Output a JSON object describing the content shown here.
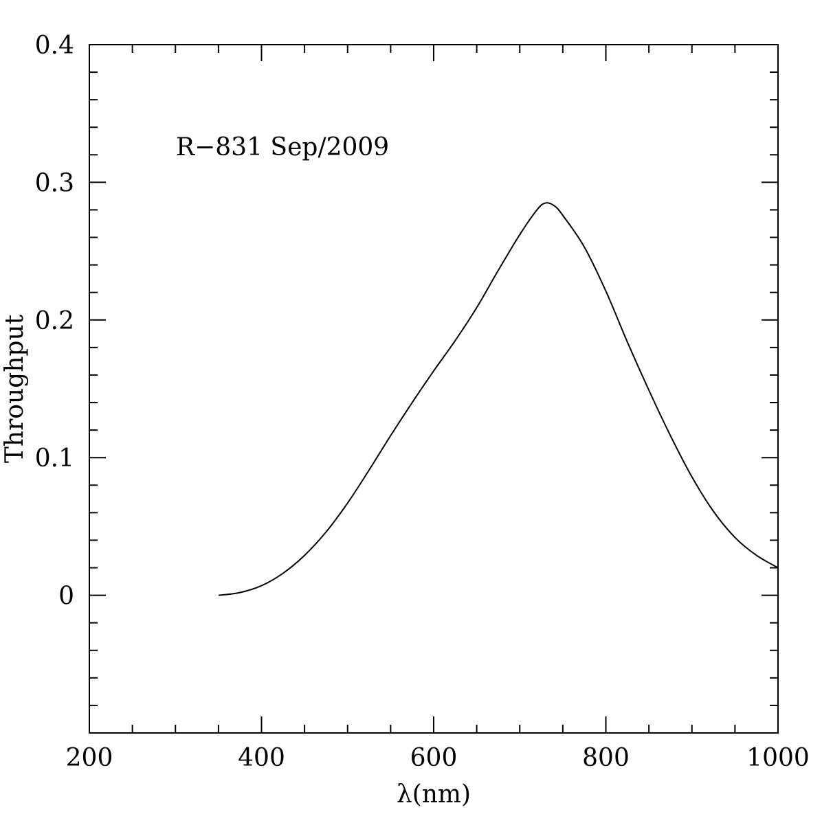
{
  "chart_data": {
    "type": "line",
    "title": "",
    "annotation": "R−831 Sep/2009",
    "xlabel": "λ(nm)",
    "ylabel": "Throughput",
    "xlim": [
      200,
      1000
    ],
    "ylim": [
      -0.1,
      0.4
    ],
    "x_major_ticks": [
      200,
      400,
      600,
      800,
      1000
    ],
    "x_tick_labels": [
      "200",
      "400",
      "600",
      "800",
      "1000"
    ],
    "x_minor_step": 50,
    "y_major_ticks": [
      0,
      0.1,
      0.2,
      0.3,
      0.4
    ],
    "y_tick_labels": [
      "0",
      "0.1",
      "0.2",
      "0.3",
      "0.4"
    ],
    "y_minor_step": 0.02,
    "grid": false,
    "line_color": "#000000",
    "series": [
      {
        "x": [
          350,
          375,
          400,
          425,
          450,
          475,
          500,
          525,
          550,
          575,
          600,
          625,
          650,
          675,
          700,
          720,
          730,
          740,
          750,
          775,
          800,
          825,
          850,
          875,
          900,
          925,
          950,
          975,
          1000
        ],
        "y": [
          0.0,
          0.002,
          0.007,
          0.016,
          0.029,
          0.046,
          0.067,
          0.091,
          0.116,
          0.14,
          0.163,
          0.185,
          0.209,
          0.236,
          0.262,
          0.28,
          0.285,
          0.283,
          0.276,
          0.253,
          0.221,
          0.184,
          0.149,
          0.116,
          0.086,
          0.061,
          0.042,
          0.029,
          0.02
        ]
      }
    ]
  }
}
